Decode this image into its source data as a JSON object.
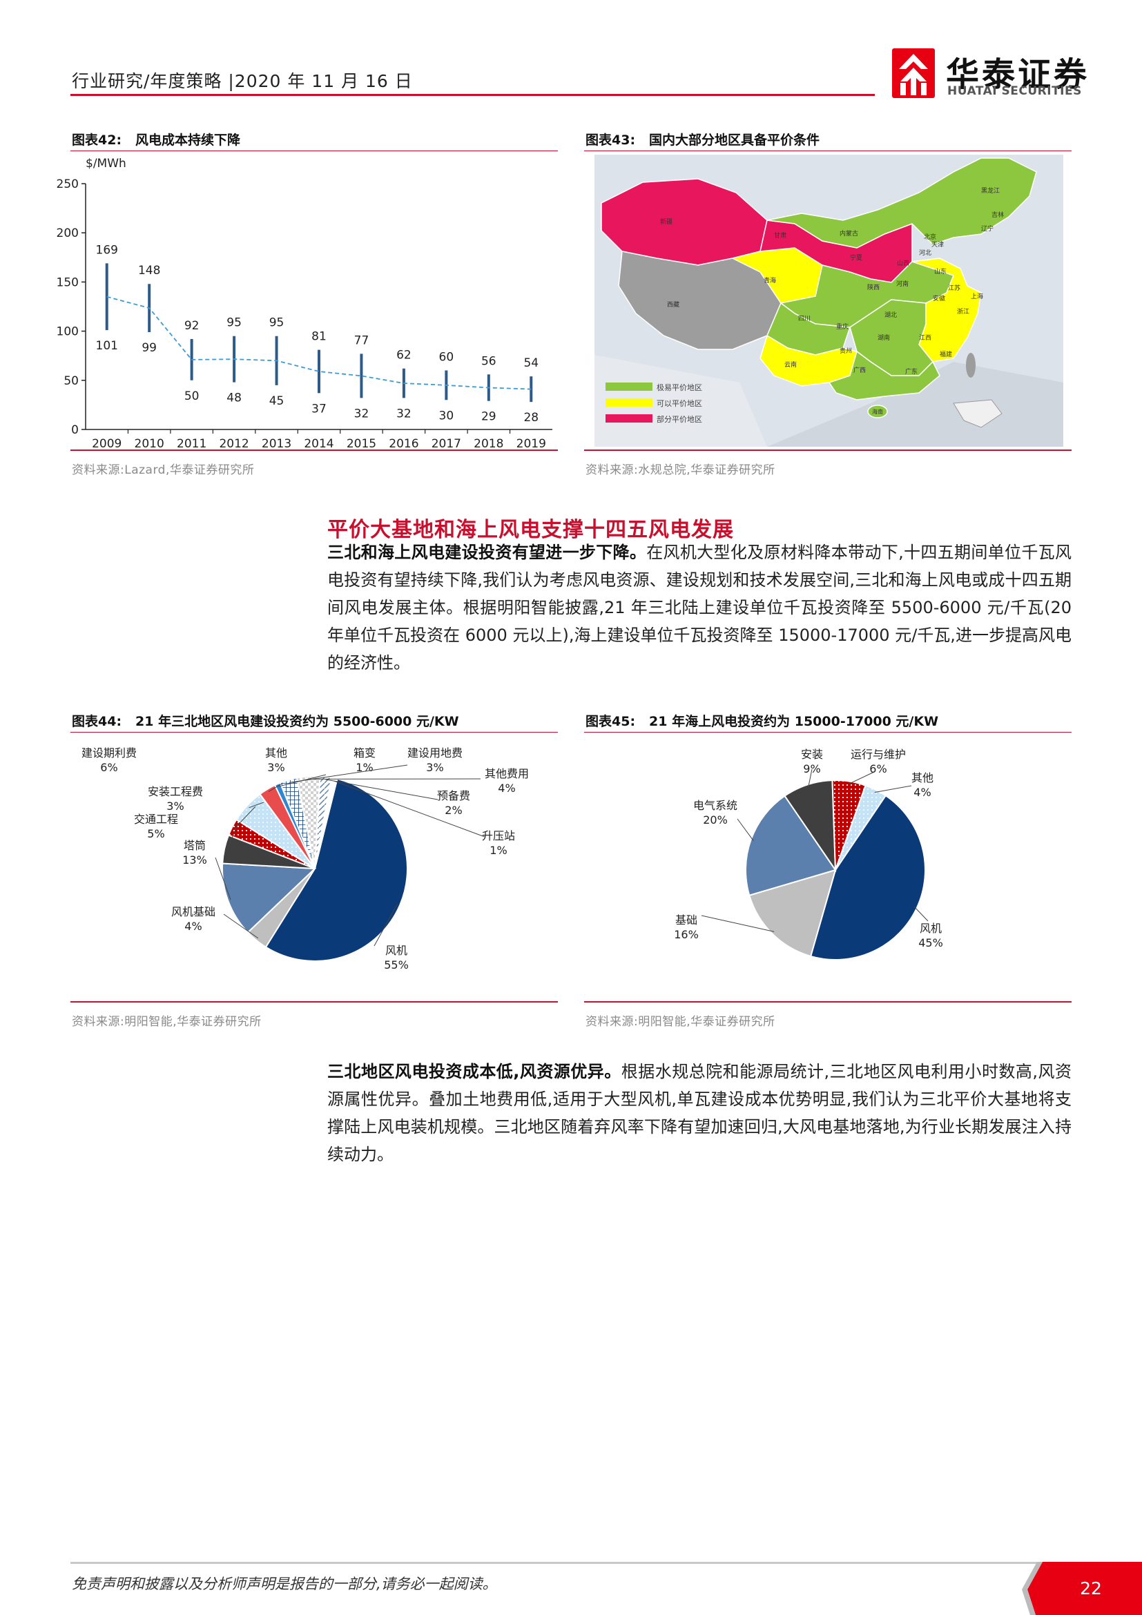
{
  "header": {
    "text": "行业研究/年度策略 |2020 年 11 月 16 日",
    "logo_cn": "华泰证券",
    "logo_en": "HUATAI SECURITIES"
  },
  "fig42": {
    "num": "图表42:",
    "title": "风电成本持续下降",
    "source": "资料来源:Lazard,华泰证券研究所"
  },
  "fig43": {
    "num": "图表43:",
    "title": "国内大部分地区具备平价条件",
    "source": "资料来源:水规总院,华泰证券研究所",
    "legend": [
      "极易平价地区",
      "可以平价地区",
      "部分平价地区"
    ],
    "legend_colors": [
      "#8dc63f",
      "#ffff00",
      "#e8175d"
    ],
    "province_labels": [
      "黑龙江",
      "吉林",
      "辽宁",
      "内蒙古",
      "新疆",
      "甘肃",
      "宁夏",
      "北京",
      "天津",
      "河北",
      "山西",
      "山东",
      "青海",
      "陕西",
      "河南",
      "江苏",
      "上海",
      "安徽",
      "浙江",
      "西藏",
      "四川",
      "重庆",
      "湖北",
      "湖南",
      "江西",
      "福建",
      "贵州",
      "云南",
      "广西",
      "广东",
      "海南"
    ]
  },
  "section": {
    "title": "平价大基地和海上风电支撑十四五风电发展",
    "p1_bold": "三北和海上风电建设投资有望进一步下降。",
    "p1_text": "在风机大型化及原材料降本带动下,十四五期间单位千瓦风电投资有望持续下降,我们认为考虑风电资源、建设规划和技术发展空间,三北和海上风电或成十四五期间风电发展主体。根据明阳智能披露,21 年三北陆上建设单位千瓦投资降至 5500-6000 元/千瓦(20 年单位千瓦投资在 6000 元以上),海上建设单位千瓦投资降至 15000-17000 元/千瓦,进一步提高风电的经济性。",
    "p2_bold": "三北地区风电投资成本低,风资源优异。",
    "p2_text": "根据水规总院和能源局统计,三北地区风电利用小时数高,风资源属性优异。叠加土地费用低,适用于大型风机,单瓦建设成本优势明显,我们认为三北平价大基地将支撑陆上风电装机规模。三北地区随着弃风率下降有望加速回归,大风电基地落地,为行业长期发展注入持续动力。"
  },
  "fig44": {
    "num": "图表44:",
    "title": "21 年三北地区风电建设投资约为 5500-6000 元/KW",
    "source": "资料来源:明阳智能,华泰证券研究所"
  },
  "fig45": {
    "num": "图表45:",
    "title": "21 年海上风电投资约为 15000-17000 元/KW",
    "source": "资料来源:明阳智能,华泰证券研究所"
  },
  "footer": {
    "disclaimer": "免责声明和披露以及分析师声明是报告的一部分,请务必一起阅读。",
    "page": "22"
  },
  "chart_data": [
    {
      "type": "range",
      "ylabel": "$/MWh",
      "ylim": [
        0,
        250
      ],
      "yticks": [
        0,
        50,
        100,
        150,
        200,
        250
      ],
      "categories": [
        "2009",
        "2010",
        "2011",
        "2012",
        "2013",
        "2014",
        "2015",
        "2016",
        "2017",
        "2018",
        "2019"
      ],
      "series": [
        {
          "values": [
            169,
            148,
            92,
            95,
            95,
            81,
            77,
            62,
            60,
            56,
            54
          ]
        },
        {
          "values": [
            101,
            99,
            50,
            48,
            45,
            37,
            32,
            32,
            30,
            29,
            28
          ]
        }
      ],
      "midline_color": "#3a9bd5",
      "bar_color": "#2e5a8a"
    },
    {
      "type": "pie",
      "labels": [
        "风机",
        "风机基础",
        "塔筒",
        "交通工程",
        "安装工程费",
        "建设期利费",
        "其他",
        "箱变",
        "建设用地费",
        "其他费用",
        "预备费",
        "升压站"
      ],
      "values": [
        55,
        4,
        13,
        5,
        3,
        6,
        3,
        1,
        3,
        4,
        2,
        1
      ],
      "value_labels": [
        "55%",
        "4%",
        "13%",
        "5%",
        "3%",
        "6%",
        "3%",
        "1%",
        "3%",
        "4%",
        "2%",
        "1%"
      ],
      "colors": [
        "#0b3a78",
        "#bfbfbf",
        "#5b80ad",
        "#3f3f3f",
        "#c00000",
        "#c5e3f6",
        "#e84c4c",
        "#2f86d1",
        "#d9d9d9",
        "#e6e6e6",
        "#a9c9ec",
        "#ffffff"
      ]
    },
    {
      "type": "pie",
      "labels": [
        "风机",
        "基础",
        "电气系统",
        "安装",
        "运行与维护",
        "其他"
      ],
      "values": [
        45,
        16,
        20,
        9,
        6,
        4
      ],
      "value_labels": [
        "45%",
        "16%",
        "20%",
        "9%",
        "6%",
        "4%"
      ],
      "colors": [
        "#0b3a78",
        "#bfbfbf",
        "#5b80ad",
        "#3f3f3f",
        "#c00000",
        "#c5e3f6"
      ]
    }
  ]
}
